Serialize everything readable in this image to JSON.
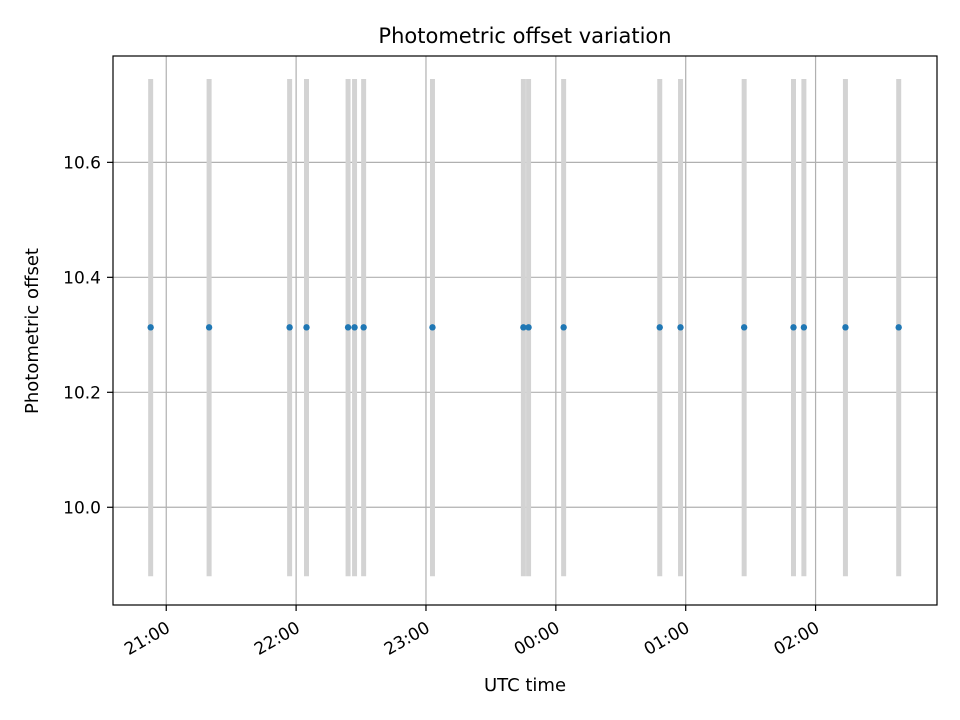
{
  "chart_data": {
    "type": "scatter",
    "title": "Photometric offset variation",
    "xlabel": "UTC time",
    "ylabel": "Photometric offset",
    "grid": true,
    "xlim_hours": [
      20.59,
      26.935
    ],
    "ylim": [
      9.83,
      10.785
    ],
    "x_ticks": [
      {
        "value": 21,
        "label": "21:00"
      },
      {
        "value": 22,
        "label": "22:00"
      },
      {
        "value": 23,
        "label": "23:00"
      },
      {
        "value": 24,
        "label": "00:00"
      },
      {
        "value": 25,
        "label": "01:00"
      },
      {
        "value": 26,
        "label": "02:00"
      }
    ],
    "y_ticks": [
      {
        "value": 10.0,
        "label": "10.0"
      },
      {
        "value": 10.2,
        "label": "10.2"
      },
      {
        "value": 10.4,
        "label": "10.4"
      },
      {
        "value": 10.6,
        "label": "10.6"
      }
    ],
    "band_range": [
      9.88,
      10.745
    ],
    "series": [
      {
        "name": "offset",
        "color": "#1f77b4",
        "x_hours": [
          20.88,
          21.33,
          21.95,
          22.08,
          22.4,
          22.45,
          22.52,
          23.05,
          23.75,
          23.79,
          24.06,
          24.8,
          24.96,
          25.45,
          25.83,
          25.91,
          26.23,
          26.64
        ],
        "y": [
          10.313,
          10.313,
          10.313,
          10.313,
          10.313,
          10.313,
          10.313,
          10.313,
          10.313,
          10.313,
          10.313,
          10.313,
          10.313,
          10.313,
          10.313,
          10.313,
          10.313,
          10.313
        ]
      }
    ],
    "band_color": "#d3d3d3"
  }
}
